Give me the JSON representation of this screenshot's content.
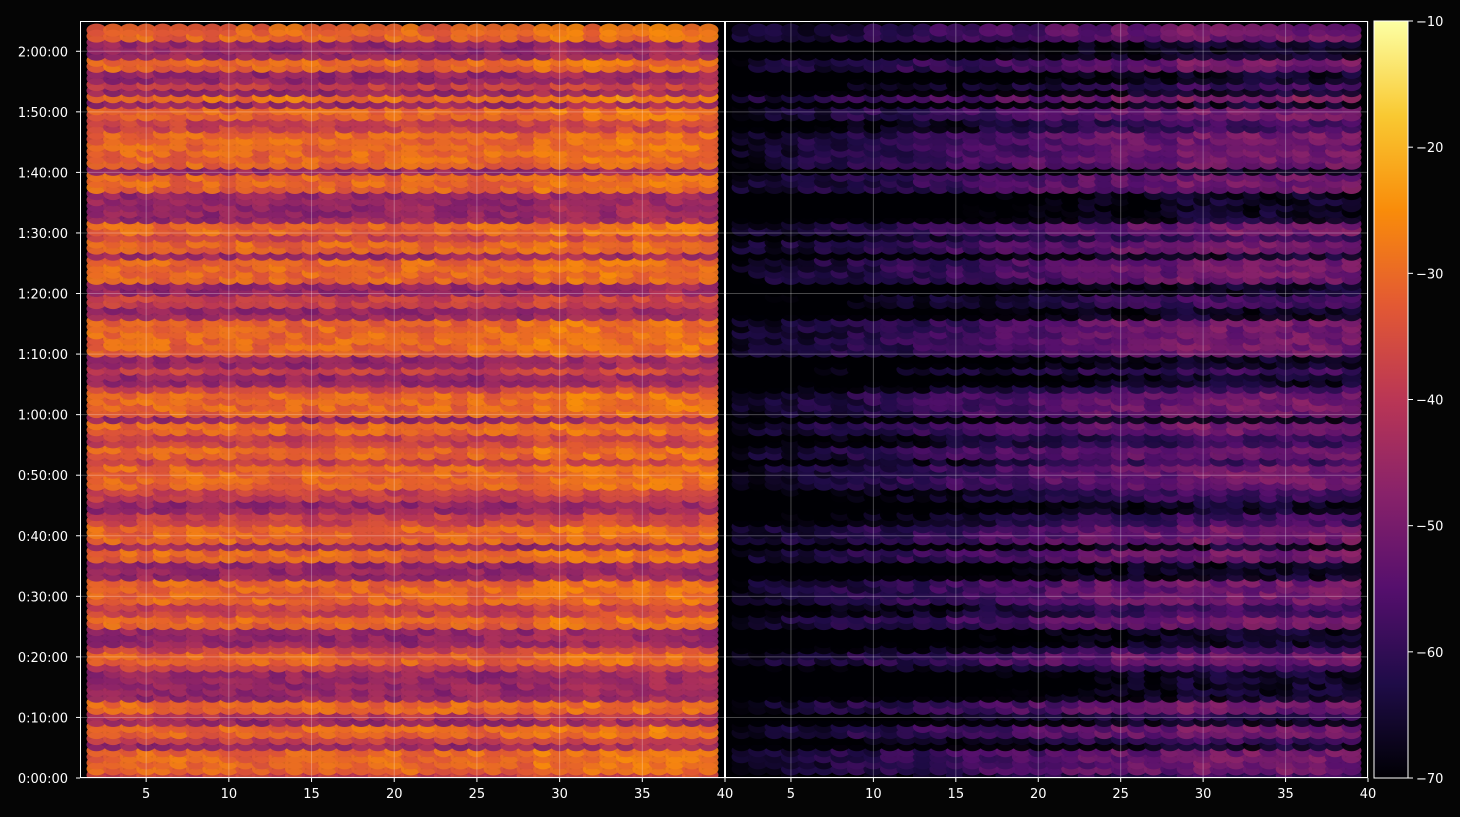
{
  "chart_data": {
    "type": "heatmap",
    "panels": [
      {
        "name": "",
        "xlim": [
          1,
          40
        ],
        "xticks": [
          5,
          10,
          15,
          20,
          25,
          30,
          35,
          40
        ],
        "xtick_labels": [
          "5",
          "10",
          "15",
          "20",
          "25",
          "30",
          "35",
          "40"
        ]
      },
      {
        "name": "",
        "xlim": [
          1,
          40
        ],
        "xticks": [
          5,
          10,
          15,
          20,
          25,
          30,
          35,
          40
        ],
        "xtick_labels": [
          "5",
          "10",
          "15",
          "20",
          "25",
          "30",
          "35",
          "40"
        ]
      }
    ],
    "y_range_seconds": [
      0,
      7500
    ],
    "yticks": [
      "0:00:00",
      "0:10:00",
      "0:20:00",
      "0:30:00",
      "0:40:00",
      "0:50:00",
      "1:00:00",
      "1:10:00",
      "1:20:00",
      "1:30:00",
      "1:40:00",
      "1:50:00",
      "2:00:00"
    ],
    "ytick_values_seconds": [
      0,
      600,
      1200,
      1800,
      2400,
      3000,
      3600,
      4200,
      4800,
      5400,
      6000,
      6600,
      7200
    ],
    "colorbar": {
      "min": -70,
      "max": -10,
      "ticks": [
        -70,
        -60,
        -50,
        -40,
        -30,
        -20,
        -10
      ],
      "tick_labels": [
        "−70",
        "−60",
        "−50",
        "−40",
        "−30",
        "−20",
        "−10"
      ],
      "colormap": "inferno"
    },
    "grid": true,
    "panel_offset_db": [
      0,
      22
    ],
    "strong_rows_seconds": [
      120,
      240,
      480,
      720,
      1200,
      1560,
      1800,
      1920,
      2220,
      2400,
      2460,
      2940,
      3060,
      3240,
      3480,
      3660,
      3780,
      4260,
      4380,
      4500,
      4980,
      5100,
      5280,
      5460,
      5880,
      5940,
      6120,
      6240,
      6360,
      6600,
      6760,
      7080,
      7380
    ],
    "weak_rows_seconds": [
      20,
      60,
      160,
      300,
      380,
      420,
      540,
      650,
      900,
      1020,
      1100,
      1300,
      1380,
      1440,
      1640,
      1700,
      1760,
      2040,
      2100,
      2160,
      2280,
      2340,
      2540,
      2600,
      2700,
      2780,
      2860,
      3140,
      3180,
      3320,
      3380,
      3540,
      3600,
      3720,
      3860,
      4040,
      4140,
      4620,
      4700,
      4780,
      4860,
      5040,
      5160,
      5360,
      5640,
      5700,
      5760,
      6060,
      6180,
      6320,
      6440,
      6520,
      6880,
      6960,
      7020,
      7140,
      7260,
      7320,
      7440
    ],
    "peak_rows_seconds": [
      1200,
      2400,
      3660,
      4260,
      5880,
      6240,
      7380
    ]
  }
}
